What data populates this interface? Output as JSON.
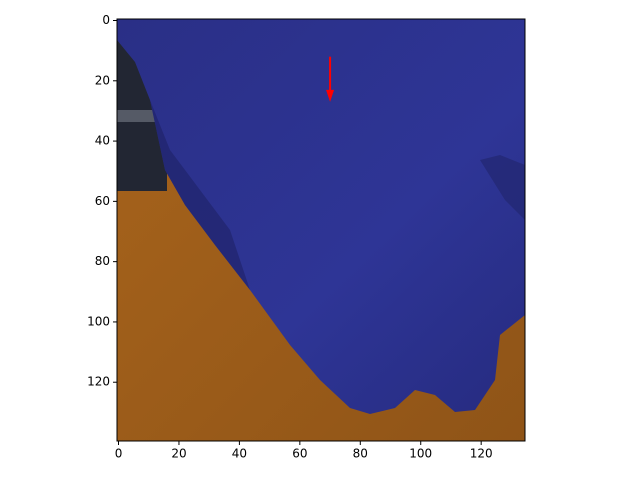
{
  "chart_data": {
    "type": "image",
    "xlim": [
      -0.5,
      134.5
    ],
    "ylim": [
      139.5,
      -0.5
    ],
    "xticks": [
      0,
      20,
      40,
      60,
      80,
      100,
      120
    ],
    "yticks": [
      0,
      20,
      40,
      60,
      80,
      100,
      120
    ],
    "arrow": {
      "x": 70,
      "y_start": 12,
      "y_end": 27,
      "color": "red"
    }
  }
}
